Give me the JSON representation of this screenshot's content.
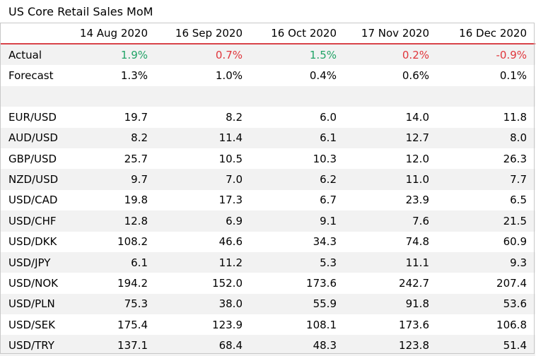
{
  "title": "US Core Retail Sales MoM",
  "colors": {
    "positive": "#21a366",
    "negative": "#e0363c",
    "header_rule": "#d9434a",
    "band": "#f2f2f2"
  },
  "columns": [
    "14 Aug 2020",
    "16 Sep 2020",
    "16 Oct 2020",
    "17 Nov 2020",
    "16 Dec 2020"
  ],
  "actual": {
    "label": "Actual",
    "values": [
      "1.9%",
      "0.7%",
      "1.5%",
      "0.2%",
      "-0.9%"
    ],
    "tone": [
      "positive",
      "negative",
      "positive",
      "negative",
      "negative"
    ]
  },
  "forecast": {
    "label": "Forecast",
    "values": [
      "1.3%",
      "1.0%",
      "0.4%",
      "0.6%",
      "0.1%"
    ]
  },
  "pairs": [
    {
      "label": "EUR/USD",
      "values": [
        "19.7",
        "8.2",
        "6.0",
        "14.0",
        "11.8"
      ]
    },
    {
      "label": "AUD/USD",
      "values": [
        "8.2",
        "11.4",
        "6.1",
        "12.7",
        "8.0"
      ]
    },
    {
      "label": "GBP/USD",
      "values": [
        "25.7",
        "10.5",
        "10.3",
        "12.0",
        "26.3"
      ]
    },
    {
      "label": "NZD/USD",
      "values": [
        "9.7",
        "7.0",
        "6.2",
        "11.0",
        "7.7"
      ]
    },
    {
      "label": "USD/CAD",
      "values": [
        "19.8",
        "17.3",
        "6.7",
        "23.9",
        "6.5"
      ]
    },
    {
      "label": "USD/CHF",
      "values": [
        "12.8",
        "6.9",
        "9.1",
        "7.6",
        "21.5"
      ]
    },
    {
      "label": "USD/DKK",
      "values": [
        "108.2",
        "46.6",
        "34.3",
        "74.8",
        "60.9"
      ]
    },
    {
      "label": "USD/JPY",
      "values": [
        "6.1",
        "11.2",
        "5.3",
        "11.1",
        "9.3"
      ]
    },
    {
      "label": "USD/NOK",
      "values": [
        "194.2",
        "152.0",
        "173.6",
        "242.7",
        "207.4"
      ]
    },
    {
      "label": "USD/PLN",
      "values": [
        "75.3",
        "38.0",
        "55.9",
        "91.8",
        "53.6"
      ]
    },
    {
      "label": "USD/SEK",
      "values": [
        "175.4",
        "123.9",
        "108.1",
        "173.6",
        "106.8"
      ]
    },
    {
      "label": "USD/TRY",
      "values": [
        "137.1",
        "68.4",
        "48.3",
        "123.8",
        "51.4"
      ]
    }
  ]
}
